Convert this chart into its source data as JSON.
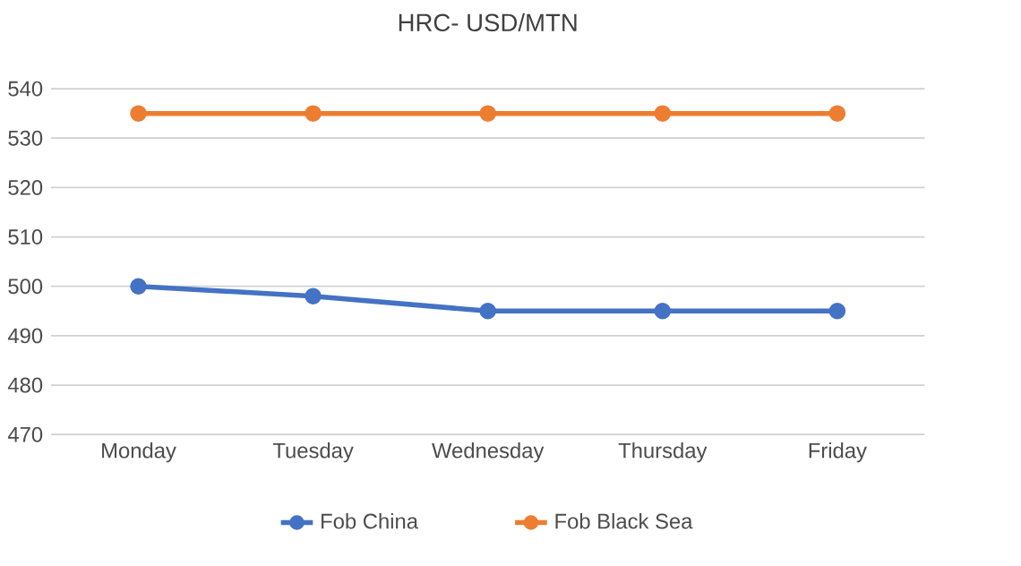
{
  "chart_data": {
    "type": "line",
    "title": "HRC- USD/MTN",
    "categories": [
      "Monday",
      "Tuesday",
      "Wednesday",
      "Thursday",
      "Friday"
    ],
    "series": [
      {
        "name": "Fob China",
        "color": "#4472c4",
        "values": [
          500,
          498,
          495,
          495,
          495
        ]
      },
      {
        "name": "Fob Black Sea",
        "color": "#ed7d31",
        "values": [
          535,
          535,
          535,
          535,
          535
        ]
      }
    ],
    "ylim": [
      470,
      540
    ],
    "yticks": [
      470,
      480,
      490,
      500,
      510,
      520,
      530,
      540
    ],
    "grid": "y",
    "legend": "bottom",
    "marker": "circle",
    "line_style": "solid"
  }
}
